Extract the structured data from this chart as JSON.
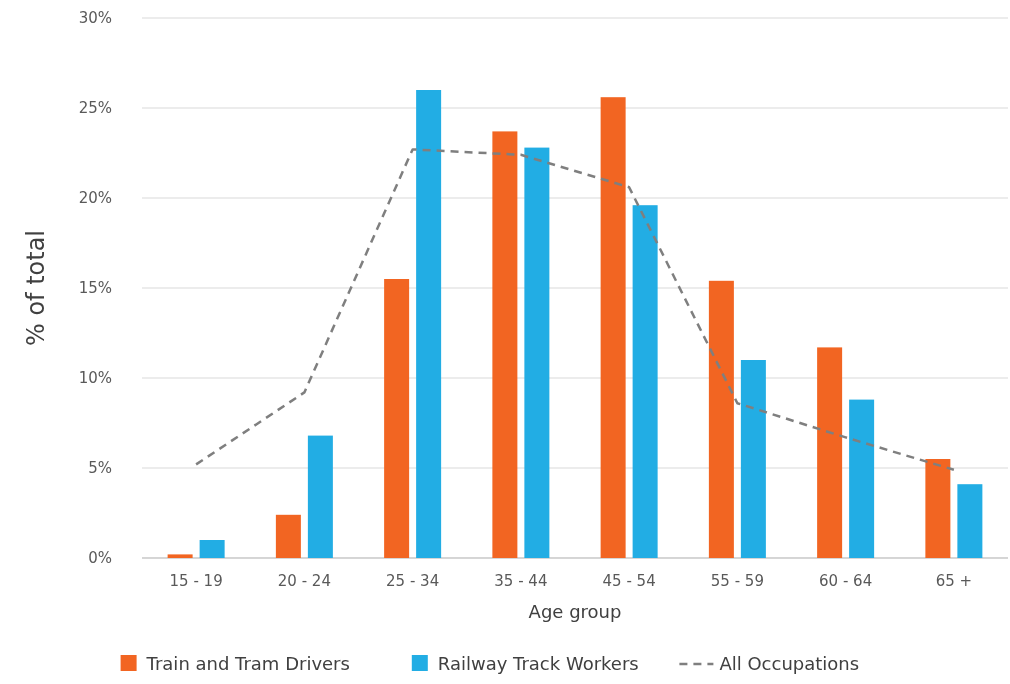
{
  "chart_data": {
    "type": "bar",
    "xlabel": "Age group",
    "ylabel": "% of total",
    "categories": [
      "15 - 19",
      "20 - 24",
      "25 - 34",
      "35 - 44",
      "45 - 54",
      "55 - 59",
      "60 - 64",
      "65 +"
    ],
    "series": [
      {
        "name": "Train and Tram Drivers",
        "color": "#f26522",
        "values": [
          0.2,
          2.4,
          15.5,
          23.7,
          25.6,
          15.4,
          11.7,
          5.5
        ]
      },
      {
        "name": "Railway Track Workers",
        "color": "#22ade4",
        "values": [
          1.0,
          6.8,
          26.0,
          22.8,
          19.6,
          11.0,
          8.8,
          4.1
        ]
      },
      {
        "name": "All Occupations",
        "type": "line",
        "color": "#7f7f7f",
        "line_style": "dashed",
        "marker": "none",
        "values": [
          5.2,
          9.2,
          22.7,
          22.4,
          20.6,
          8.6,
          6.7,
          4.9
        ]
      }
    ],
    "ylim": [
      0,
      30
    ],
    "yticks": [
      {
        "value": 0,
        "label": "0%"
      },
      {
        "value": 5,
        "label": "5%"
      },
      {
        "value": 10,
        "label": "10%"
      },
      {
        "value": 15,
        "label": "15%"
      },
      {
        "value": 20,
        "label": "20%"
      },
      {
        "value": 25,
        "label": "25%"
      },
      {
        "value": 30,
        "label": "30%"
      }
    ],
    "grid": "y",
    "legend": "bottom"
  }
}
